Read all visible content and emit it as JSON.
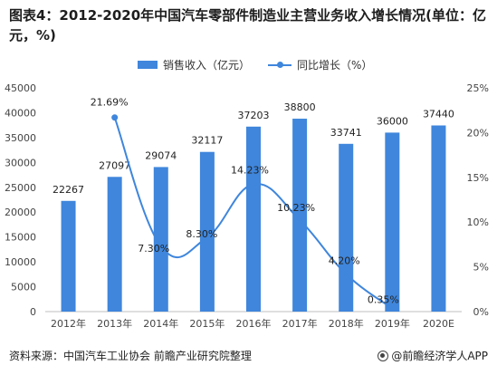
{
  "header": {
    "title": "图表4：2012-2020年中国汽车零部件制造业主营业务收入增长情况(单位：亿元，%)"
  },
  "footer": {
    "source": "资料来源：中国汽车工业协会 前瞻产业研究院整理",
    "brand": "@前瞻经济学人APP"
  },
  "chart_data": {
    "type": "bar",
    "title": "图表4：2012-2020年中国汽车零部件制造业主营业务收入增长情况(单位：亿元，%)",
    "categories": [
      "2012年",
      "2013年",
      "2014年",
      "2015年",
      "2016年",
      "2017年",
      "2018年",
      "2019年",
      "2020E"
    ],
    "series": [
      {
        "name": "销售收入（亿元）",
        "type": "bar",
        "axis": "left",
        "values": [
          22267,
          27097,
          29074,
          32117,
          37203,
          38800,
          33741,
          36000,
          37440
        ],
        "labels": [
          "22267",
          "27097",
          "29074",
          "32117",
          "37203",
          "38800",
          "33741",
          "36000",
          "37440"
        ]
      },
      {
        "name": "同比增长（%）",
        "type": "line",
        "axis": "right",
        "values": [
          null,
          21.69,
          7.3,
          8.3,
          14.23,
          10.23,
          4.2,
          0.35,
          null
        ],
        "labels": [
          "",
          "21.69%",
          "7.30%",
          "8.30%",
          "14.23%",
          "10.23%",
          "4.20%",
          "0.35%",
          ""
        ]
      }
    ],
    "y_left": {
      "ylim": [
        0,
        45000
      ],
      "ticks": [
        "0",
        "5000",
        "10000",
        "15000",
        "20000",
        "25000",
        "30000",
        "35000",
        "40000",
        "45000"
      ]
    },
    "y_right": {
      "ylim": [
        0,
        25
      ],
      "ticks": [
        "0%",
        "5%",
        "10%",
        "15%",
        "20%",
        "25%"
      ]
    },
    "legend_position": "top-center",
    "grid": false,
    "colors": {
      "bar": "#3f86dc",
      "line": "#3f86dc"
    }
  }
}
